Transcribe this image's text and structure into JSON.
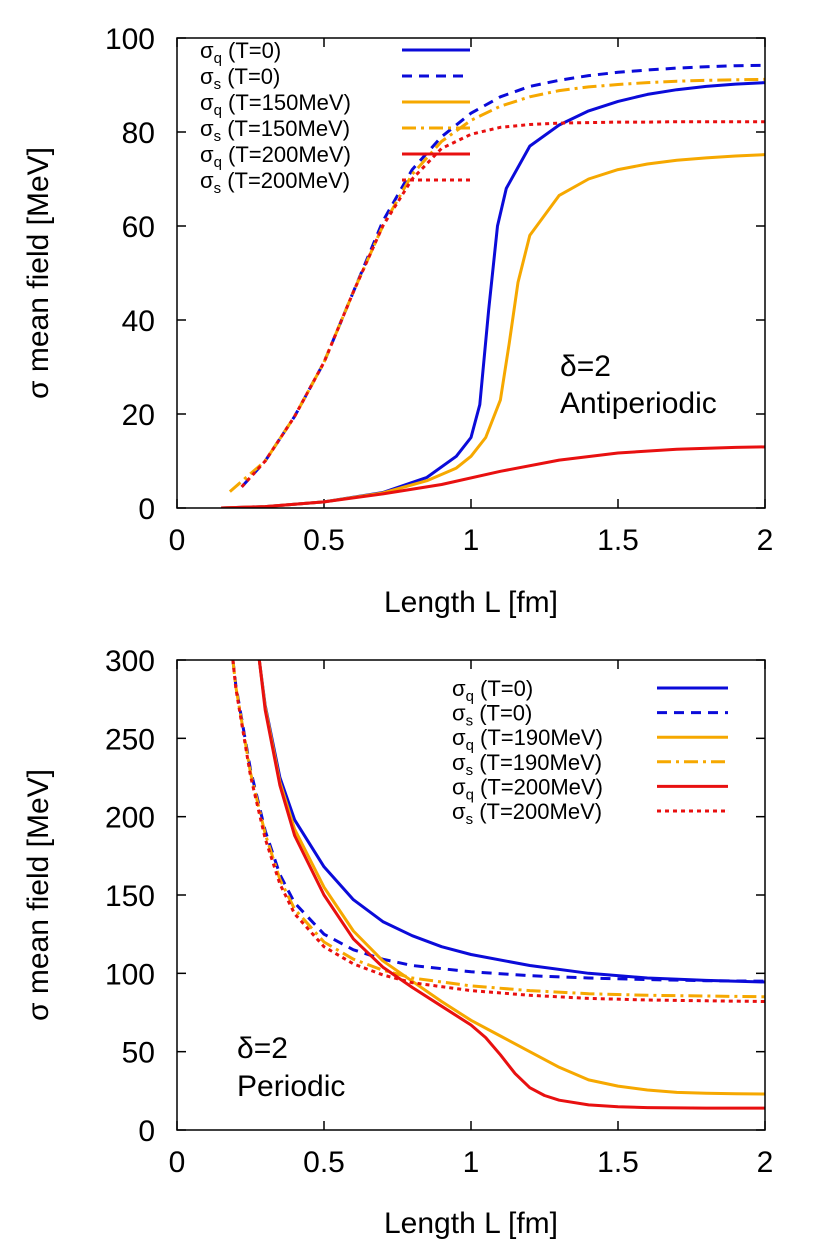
{
  "chart_data": [
    {
      "type": "line",
      "xlabel": "Length L [fm]",
      "ylabel": "σ mean field [MeV]",
      "xlim": [
        0,
        2
      ],
      "ylim": [
        0,
        100
      ],
      "xticks": [
        "0",
        "0.5",
        "1",
        "1.5",
        "2"
      ],
      "yticks": [
        "0",
        "20",
        "40",
        "60",
        "80",
        "100"
      ],
      "annotation": [
        "δ=2",
        "Antiperiodic"
      ],
      "legend_position": "top-left",
      "series": [
        {
          "name": "σq (T=0)",
          "sym": "σ",
          "sub": "q",
          "rest": " (T=0)",
          "color": "#0b0bd9",
          "dash": "solid",
          "x": [
            0.15,
            0.3,
            0.5,
            0.7,
            0.85,
            0.95,
            1.0,
            1.03,
            1.06,
            1.09,
            1.12,
            1.2,
            1.3,
            1.4,
            1.5,
            1.6,
            1.7,
            1.8,
            1.9,
            2.0
          ],
          "y": [
            0,
            0.3,
            1.3,
            3.3,
            6.5,
            11,
            15,
            22,
            42,
            60,
            68,
            77,
            81.5,
            84.5,
            86.5,
            88,
            89,
            89.7,
            90.2,
            90.5
          ]
        },
        {
          "name": "σs (T=0)",
          "sym": "σ",
          "sub": "s",
          "rest": " (T=0)",
          "color": "#0b0bd9",
          "dash": "10,7",
          "x": [
            0.22,
            0.3,
            0.4,
            0.5,
            0.6,
            0.7,
            0.8,
            0.9,
            1.0,
            1.1,
            1.2,
            1.3,
            1.4,
            1.5,
            1.6,
            1.7,
            1.8,
            1.9,
            2.0
          ],
          "y": [
            4.5,
            10,
            19.5,
            31,
            46,
            61,
            72,
            79,
            84,
            87.5,
            89.7,
            91,
            92,
            92.7,
            93.2,
            93.6,
            93.9,
            94.1,
            94.2
          ]
        },
        {
          "name": "σq (T=150MeV)",
          "sym": "σ",
          "sub": "q",
          "rest": " (T=150MeV)",
          "color": "#f6a800",
          "dash": "solid",
          "x": [
            0.15,
            0.3,
            0.5,
            0.7,
            0.85,
            0.95,
            1.0,
            1.05,
            1.1,
            1.13,
            1.16,
            1.2,
            1.3,
            1.4,
            1.5,
            1.6,
            1.7,
            1.8,
            1.9,
            2.0
          ],
          "y": [
            0,
            0.3,
            1.3,
            3.2,
            5.8,
            8.5,
            11,
            15,
            23,
            35,
            48,
            58,
            66.5,
            70,
            72,
            73.2,
            74,
            74.5,
            74.9,
            75.2
          ]
        },
        {
          "name": "σs (T=150MeV)",
          "sym": "σ",
          "sub": "s",
          "rest": " (T=150MeV)",
          "color": "#f6a800",
          "dash": "14,5,3,5",
          "x": [
            0.18,
            0.3,
            0.4,
            0.5,
            0.6,
            0.7,
            0.8,
            0.9,
            1.0,
            1.1,
            1.2,
            1.3,
            1.4,
            1.5,
            1.6,
            1.7,
            1.8,
            1.9,
            2.0
          ],
          "y": [
            3.5,
            10,
            19.5,
            31,
            46,
            60,
            71,
            78,
            82.5,
            85.5,
            87.5,
            88.8,
            89.6,
            90.1,
            90.5,
            90.8,
            91,
            91.1,
            91.2
          ]
        },
        {
          "name": "σq (T=200MeV)",
          "sym": "σ",
          "sub": "q",
          "rest": " (T=200MeV)",
          "color": "#e81010",
          "dash": "solid",
          "x": [
            0.15,
            0.3,
            0.5,
            0.7,
            0.9,
            1.1,
            1.3,
            1.5,
            1.7,
            1.9,
            2.0
          ],
          "y": [
            0,
            0.3,
            1.3,
            3,
            5,
            7.8,
            10.2,
            11.7,
            12.5,
            12.9,
            13
          ]
        },
        {
          "name": "σs (T=200MeV)",
          "sym": "σ",
          "sub": "s",
          "rest": " (T=200MeV)",
          "color": "#e81010",
          "dash": "4,4",
          "x": [
            0.22,
            0.3,
            0.4,
            0.5,
            0.6,
            0.7,
            0.8,
            0.9,
            1.0,
            1.1,
            1.2,
            1.3,
            1.4,
            1.5,
            1.6,
            1.7,
            1.8,
            1.9,
            2.0
          ],
          "y": [
            4.5,
            10,
            19.5,
            31,
            46,
            60,
            70,
            76.5,
            79.5,
            81,
            81.6,
            81.9,
            82,
            82.1,
            82.1,
            82.2,
            82.2,
            82.2,
            82.2
          ]
        }
      ]
    },
    {
      "type": "line",
      "xlabel": "Length L [fm]",
      "ylabel": "σ mean field [MeV]",
      "xlim": [
        0,
        2
      ],
      "ylim": [
        0,
        300
      ],
      "xticks": [
        "0",
        "0.5",
        "1",
        "1.5",
        "2"
      ],
      "yticks": [
        "0",
        "50",
        "100",
        "150",
        "200",
        "250",
        "300"
      ],
      "annotation": [
        "δ=2",
        "Periodic"
      ],
      "legend_position": "top-right",
      "series": [
        {
          "name": "σq (T=0)",
          "sym": "σ",
          "sub": "q",
          "rest": " (T=0)",
          "color": "#0b0bd9",
          "dash": "solid",
          "x": [
            0.28,
            0.3,
            0.35,
            0.4,
            0.5,
            0.6,
            0.7,
            0.8,
            0.9,
            1.0,
            1.2,
            1.4,
            1.6,
            1.8,
            2.0
          ],
          "y": [
            300,
            271,
            225,
            198,
            168,
            147,
            133,
            124,
            117,
            112,
            105,
            100,
            97,
            95.5,
            94.5
          ]
        },
        {
          "name": "σs (T=0)",
          "sym": "σ",
          "sub": "s",
          "rest": " (T=0)",
          "color": "#0b0bd9",
          "dash": "10,7",
          "x": [
            0.19,
            0.2,
            0.25,
            0.3,
            0.35,
            0.4,
            0.5,
            0.6,
            0.7,
            0.8,
            1.0,
            1.2,
            1.4,
            1.6,
            1.8,
            2.0
          ],
          "y": [
            300,
            284,
            230,
            191,
            163,
            145,
            125,
            115,
            109,
            105,
            101,
            98.5,
            97,
            96,
            95.3,
            95
          ]
        },
        {
          "name": "σq (T=190MeV)",
          "sym": "σ",
          "sub": "q",
          "rest": " (T=190MeV)",
          "color": "#f6a800",
          "dash": "solid",
          "x": [
            0.28,
            0.3,
            0.35,
            0.4,
            0.5,
            0.6,
            0.7,
            0.8,
            0.9,
            1.0,
            1.1,
            1.2,
            1.3,
            1.4,
            1.5,
            1.6,
            1.7,
            1.8,
            1.9,
            2.0
          ],
          "y": [
            300,
            270,
            222,
            192,
            155,
            127,
            108,
            95,
            82,
            70,
            60,
            50,
            40,
            32,
            28,
            25.5,
            24,
            23.5,
            23.2,
            23
          ]
        },
        {
          "name": "σs (T=190MeV)",
          "sym": "σ",
          "sub": "s",
          "rest": " (T=190MeV)",
          "color": "#f6a800",
          "dash": "14,5,3,5",
          "x": [
            0.19,
            0.2,
            0.25,
            0.3,
            0.35,
            0.4,
            0.5,
            0.6,
            0.7,
            0.8,
            1.0,
            1.2,
            1.4,
            1.6,
            1.8,
            2.0
          ],
          "y": [
            300,
            283,
            228,
            189,
            160,
            141,
            120,
            109,
            102,
            97,
            92,
            89,
            87,
            86,
            85.5,
            85
          ]
        },
        {
          "name": "σq (T=200MeV)",
          "sym": "σ",
          "sub": "q",
          "rest": " (T=200MeV)",
          "color": "#e81010",
          "dash": "solid",
          "x": [
            0.28,
            0.3,
            0.35,
            0.4,
            0.5,
            0.6,
            0.7,
            0.8,
            0.9,
            1.0,
            1.05,
            1.1,
            1.15,
            1.2,
            1.25,
            1.3,
            1.4,
            1.5,
            1.6,
            1.8,
            2.0
          ],
          "y": [
            300,
            268,
            220,
            188,
            150,
            122,
            104,
            91,
            79,
            67,
            59,
            48,
            36,
            27,
            22,
            19,
            16,
            14.8,
            14.3,
            14,
            14
          ]
        },
        {
          "name": "σs (T=200MeV)",
          "sym": "σ",
          "sub": "s",
          "rest": " (T=200MeV)",
          "color": "#e81010",
          "dash": "4,4",
          "x": [
            0.19,
            0.2,
            0.25,
            0.3,
            0.35,
            0.4,
            0.5,
            0.6,
            0.7,
            0.8,
            1.0,
            1.2,
            1.4,
            1.6,
            1.8,
            2.0
          ],
          "y": [
            300,
            282,
            226,
            186,
            157,
            138,
            117,
            106,
            99,
            94,
            89,
            86,
            84,
            83,
            82.5,
            82
          ]
        }
      ]
    }
  ]
}
